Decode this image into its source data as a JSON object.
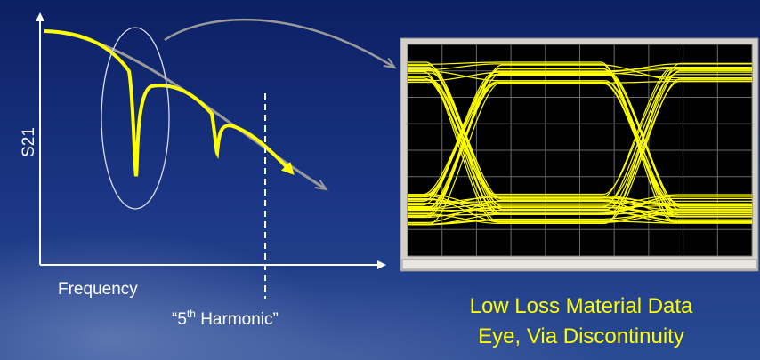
{
  "axes": {
    "y_label": "S21",
    "x_label": "Frequency"
  },
  "annotation": {
    "parts": [
      "“5",
      "th",
      " Harmonic”"
    ]
  },
  "caption": {
    "lines": [
      "Low Loss Material Data",
      "Eye, Via Discontinuity"
    ]
  }
}
